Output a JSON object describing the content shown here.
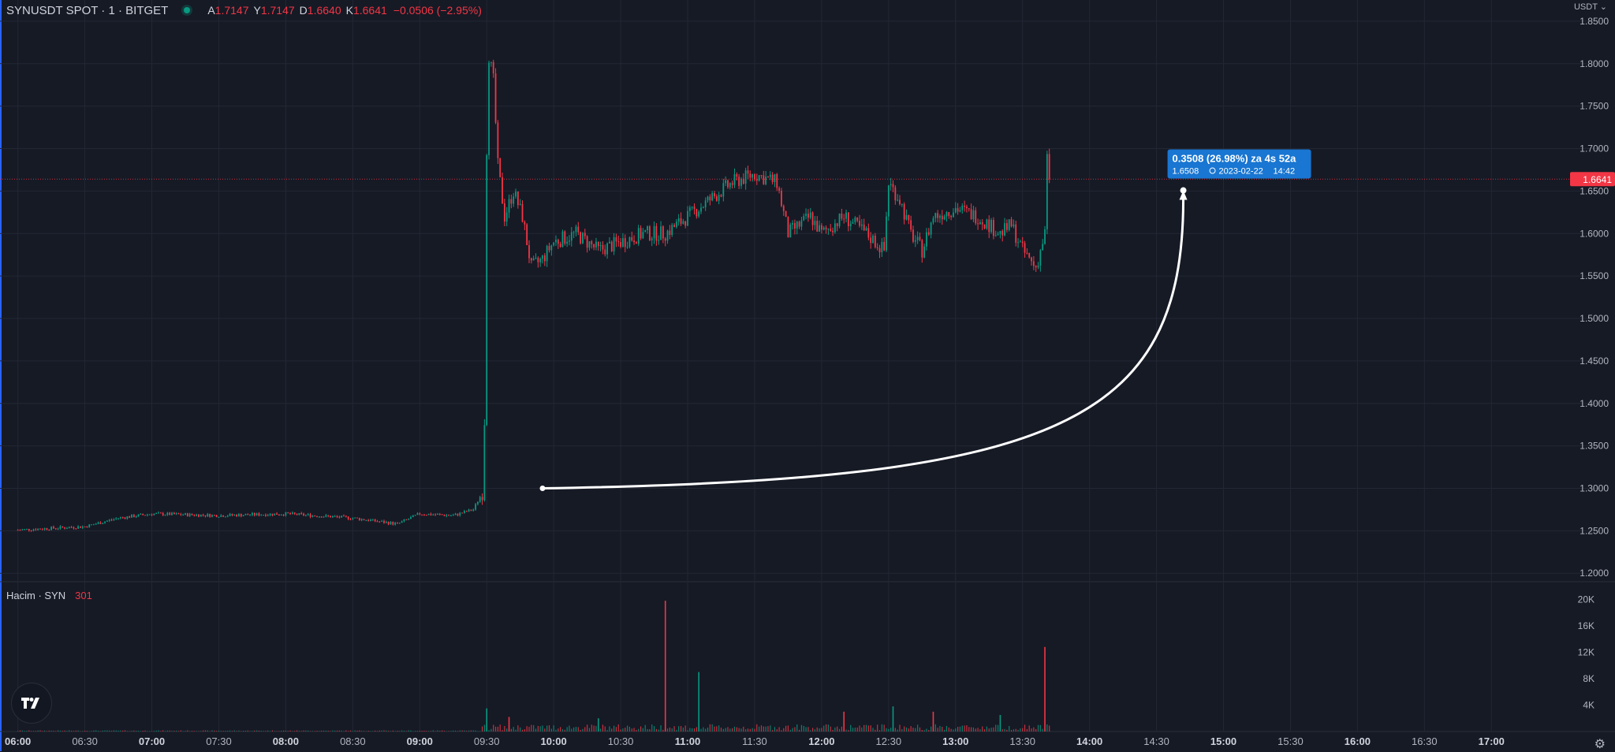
{
  "header": {
    "symbol": "SYNUSDT SPOT · 1 · BITGET",
    "open_label": "A",
    "open": "1.7147",
    "high_label": "Y",
    "high": "1.7147",
    "low_label": "D",
    "low": "1.6640",
    "close_label": "K",
    "close": "1.6641",
    "change": "−0.0506 (−2.95%)"
  },
  "currency": "USDT",
  "volume_pane": {
    "label": "Hacim · SYN",
    "value": "301"
  },
  "colors": {
    "up": "#089981",
    "down": "#f23645",
    "bg": "#161a25",
    "grid": "#232734",
    "annotation": "#1976d2"
  },
  "icons": {
    "logo": "tradingview-logo-icon",
    "settings": "gear-icon",
    "currency_menu": "chevron-down-icon"
  },
  "chart_data": {
    "type": "candlestick",
    "x_axis_ticks": [
      "06:00",
      "06:30",
      "07:00",
      "07:30",
      "08:00",
      "08:30",
      "09:00",
      "09:30",
      "10:00",
      "10:30",
      "11:00",
      "11:30",
      "12:00",
      "12:30",
      "13:00",
      "13:30",
      "14:00",
      "14:30",
      "15:00",
      "15:30",
      "16:00",
      "16:30",
      "17:00"
    ],
    "price_axis_ticks": [
      1.2,
      1.25,
      1.3,
      1.35,
      1.4,
      1.45,
      1.5,
      1.55,
      1.6,
      1.65,
      1.7,
      1.75,
      1.8,
      1.85
    ],
    "price_range": [
      1.19,
      1.875
    ],
    "time_range": [
      "05:52",
      "17:49"
    ],
    "volume_axis_ticks": [
      "4K",
      "8K",
      "12K",
      "16K",
      "20K"
    ],
    "volume_range": [
      0,
      21000
    ],
    "current_price": "1.6641",
    "price_path": [
      [
        "06:00",
        1.251
      ],
      [
        "06:30",
        1.255
      ],
      [
        "06:45",
        1.265
      ],
      [
        "07:00",
        1.27
      ],
      [
        "07:30",
        1.268
      ],
      [
        "08:00",
        1.27
      ],
      [
        "08:30",
        1.265
      ],
      [
        "08:50",
        1.258
      ],
      [
        "09:00",
        1.27
      ],
      [
        "09:15",
        1.268
      ],
      [
        "09:24",
        1.275
      ],
      [
        "09:28",
        1.295
      ],
      [
        "09:29",
        1.38
      ],
      [
        "09:30",
        1.7
      ],
      [
        "09:31",
        1.81
      ],
      [
        "09:33",
        1.78
      ],
      [
        "09:35",
        1.68
      ],
      [
        "09:38",
        1.62
      ],
      [
        "09:42",
        1.65
      ],
      [
        "09:46",
        1.62
      ],
      [
        "09:50",
        1.56
      ],
      [
        "09:55",
        1.57
      ],
      [
        "10:00",
        1.59
      ],
      [
        "10:10",
        1.6
      ],
      [
        "10:20",
        1.58
      ],
      [
        "10:30",
        1.59
      ],
      [
        "10:40",
        1.6
      ],
      [
        "10:50",
        1.6
      ],
      [
        "11:00",
        1.62
      ],
      [
        "11:10",
        1.64
      ],
      [
        "11:20",
        1.66
      ],
      [
        "11:30",
        1.67
      ],
      [
        "11:40",
        1.66
      ],
      [
        "11:45",
        1.6
      ],
      [
        "11:55",
        1.62
      ],
      [
        "12:00",
        1.6
      ],
      [
        "12:10",
        1.62
      ],
      [
        "12:20",
        1.6
      ],
      [
        "12:28",
        1.58
      ],
      [
        "12:30",
        1.66
      ],
      [
        "12:35",
        1.64
      ],
      [
        "12:40",
        1.6
      ],
      [
        "12:45",
        1.58
      ],
      [
        "12:50",
        1.62
      ],
      [
        "13:00",
        1.63
      ],
      [
        "13:10",
        1.62
      ],
      [
        "13:20",
        1.6
      ],
      [
        "13:25",
        1.61
      ],
      [
        "13:30",
        1.58
      ],
      [
        "13:36",
        1.56
      ],
      [
        "13:40",
        1.6
      ],
      [
        "13:41",
        1.69
      ],
      [
        "13:42",
        1.6641
      ]
    ],
    "volume_spikes": [
      [
        "09:30",
        3500
      ],
      [
        "09:40",
        2200
      ],
      [
        "10:20",
        2000
      ],
      [
        "10:50",
        19800
      ],
      [
        "11:05",
        9000
      ],
      [
        "12:10",
        3000
      ],
      [
        "12:32",
        3800
      ],
      [
        "12:50",
        3000
      ],
      [
        "13:20",
        2500
      ],
      [
        "13:40",
        12800
      ]
    ],
    "annotation": {
      "text": "0.3508 (26.98%) za 4s 52a",
      "subtext": "1.6508",
      "date": "2023-02-22",
      "time": "14:42",
      "arrow_from": [
        "09:55",
        1.3
      ],
      "arrow_to": [
        "14:42",
        1.6508
      ]
    }
  }
}
